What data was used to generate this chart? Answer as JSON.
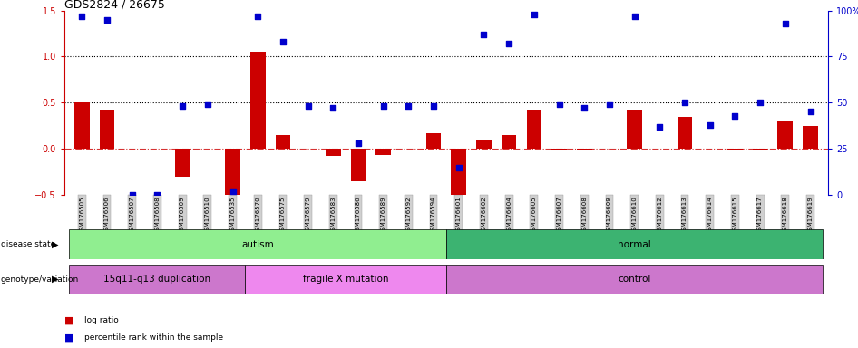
{
  "title": "GDS2824 / 26675",
  "samples": [
    "GSM176505",
    "GSM176506",
    "GSM176507",
    "GSM176508",
    "GSM176509",
    "GSM176510",
    "GSM176535",
    "GSM176570",
    "GSM176575",
    "GSM176579",
    "GSM176583",
    "GSM176586",
    "GSM176589",
    "GSM176592",
    "GSM176594",
    "GSM176601",
    "GSM176602",
    "GSM176604",
    "GSM176605",
    "GSM176607",
    "GSM176608",
    "GSM176609",
    "GSM176610",
    "GSM176612",
    "GSM176613",
    "GSM176614",
    "GSM176615",
    "GSM176617",
    "GSM176618",
    "GSM176619"
  ],
  "log_ratio": [
    0.5,
    0.42,
    0.0,
    0.0,
    -0.3,
    0.0,
    -0.52,
    1.05,
    0.15,
    0.0,
    -0.08,
    -0.35,
    -0.07,
    0.0,
    0.17,
    -0.52,
    0.1,
    0.15,
    0.42,
    -0.02,
    -0.02,
    0.0,
    0.42,
    0.0,
    0.35,
    0.0,
    -0.02,
    -0.02,
    0.3,
    0.25
  ],
  "percentile_rank": [
    97,
    95,
    0,
    0,
    48,
    49,
    2,
    97,
    83,
    48,
    47,
    28,
    48,
    48,
    48,
    15,
    87,
    82,
    98,
    49,
    47,
    49,
    97,
    37,
    50,
    38,
    43,
    50,
    93,
    45
  ],
  "disease_state_groups": [
    {
      "label": "autism",
      "start": 0,
      "end": 14,
      "color": "#90EE90"
    },
    {
      "label": "normal",
      "start": 15,
      "end": 29,
      "color": "#3CB371"
    }
  ],
  "genotype_groups": [
    {
      "label": "15q11-q13 duplication",
      "start": 0,
      "end": 6,
      "color": "#CC77CC"
    },
    {
      "label": "fragile X mutation",
      "start": 7,
      "end": 14,
      "color": "#EE88EE"
    },
    {
      "label": "control",
      "start": 15,
      "end": 29,
      "color": "#CC77CC"
    }
  ],
  "ylim_left": [
    -0.5,
    1.5
  ],
  "ylim_right": [
    0,
    100
  ],
  "bar_color": "#CC0000",
  "dot_color": "#0000CC",
  "background_color": "#ffffff"
}
